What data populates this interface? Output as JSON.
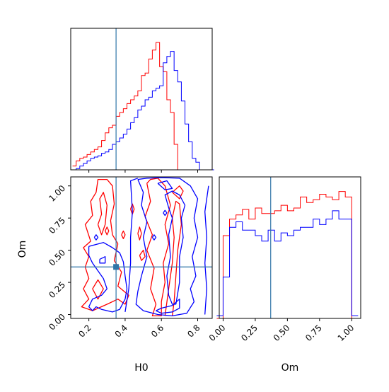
{
  "chart_data": {
    "type": "corner",
    "parameters": [
      "H0",
      "Om"
    ],
    "xlabel": "H0",
    "ylabel": "Om",
    "truth": {
      "H0": 0.35,
      "Om": 0.37
    },
    "colors": {
      "series_a": "#ff0000",
      "series_b": "#0000ff",
      "truth": "#2f74a8"
    },
    "h0_ticks": [
      "0.2",
      "0.4",
      "0.6",
      "0.8"
    ],
    "om_ticks": [
      "0.00",
      "0.25",
      "0.50",
      "0.75",
      "1.00"
    ],
    "h0_range": [
      0.1,
      0.88
    ],
    "om_range": [
      -0.03,
      1.07
    ],
    "histogram_h0": {
      "bin_edges": [
        0.11,
        0.13,
        0.15,
        0.17,
        0.19,
        0.21,
        0.23,
        0.25,
        0.27,
        0.29,
        0.31,
        0.33,
        0.35,
        0.37,
        0.39,
        0.41,
        0.43,
        0.45,
        0.47,
        0.49,
        0.51,
        0.53,
        0.55,
        0.57,
        0.59,
        0.61,
        0.63,
        0.65,
        0.67,
        0.69,
        0.71,
        0.73,
        0.75,
        0.77,
        0.79,
        0.81,
        0.83,
        0.85,
        0.87,
        0.89
      ],
      "series": [
        {
          "color": "red",
          "values": [
            0.03,
            0.07,
            0.09,
            0.1,
            0.12,
            0.14,
            0.16,
            0.18,
            0.23,
            0.29,
            0.33,
            0.35,
            0.42,
            0.45,
            0.48,
            0.52,
            0.55,
            0.58,
            0.62,
            0.74,
            0.76,
            0.87,
            0.94,
            1.0,
            0.81,
            0.77,
            0.55,
            0.45,
            0.2,
            0.0,
            0.0,
            0.0,
            0.0,
            0.0,
            0.0,
            0.0,
            0.0,
            0.0,
            0.0
          ]
        },
        {
          "color": "blue",
          "values": [
            0.0,
            0.01,
            0.03,
            0.05,
            0.07,
            0.09,
            0.1,
            0.11,
            0.13,
            0.14,
            0.16,
            0.2,
            0.22,
            0.25,
            0.28,
            0.32,
            0.37,
            0.41,
            0.47,
            0.5,
            0.55,
            0.57,
            0.62,
            0.64,
            0.66,
            0.84,
            0.89,
            0.93,
            0.78,
            0.69,
            0.54,
            0.36,
            0.22,
            0.09,
            0.06,
            0.0,
            0.0,
            0.0,
            0.0
          ]
        }
      ]
    },
    "histogram_om": {
      "bin_edges": [
        -0.05,
        0.0,
        0.05,
        0.1,
        0.15,
        0.2,
        0.25,
        0.3,
        0.35,
        0.4,
        0.45,
        0.5,
        0.55,
        0.6,
        0.65,
        0.7,
        0.75,
        0.8,
        0.85,
        0.9,
        0.95,
        1.0,
        1.05
      ],
      "series": [
        {
          "color": "red",
          "values": [
            0.0,
            0.6,
            0.72,
            0.75,
            0.79,
            0.72,
            0.8,
            0.76,
            0.76,
            0.78,
            0.82,
            0.78,
            0.8,
            0.88,
            0.84,
            0.86,
            0.9,
            0.88,
            0.86,
            0.92,
            0.88,
            0.0
          ]
        },
        {
          "color": "blue",
          "values": [
            0.02,
            0.3,
            0.66,
            0.7,
            0.64,
            0.64,
            0.6,
            0.56,
            0.64,
            0.56,
            0.62,
            0.6,
            0.64,
            0.66,
            0.66,
            0.72,
            0.68,
            0.72,
            0.78,
            0.72,
            0.72,
            0.02
          ]
        }
      ]
    },
    "contours": [
      {
        "color": "red",
        "points": [
          [
            0.36,
            0.55
          ],
          [
            0.33,
            0.62
          ],
          [
            0.32,
            0.73
          ],
          [
            0.34,
            0.86
          ],
          [
            0.33,
            1.0
          ],
          [
            0.3,
            1.05
          ],
          [
            0.25,
            1.05
          ],
          [
            0.24,
            0.95
          ],
          [
            0.21,
            0.88
          ],
          [
            0.22,
            0.77
          ],
          [
            0.18,
            0.7
          ],
          [
            0.21,
            0.57
          ],
          [
            0.17,
            0.52
          ],
          [
            0.2,
            0.45
          ],
          [
            0.18,
            0.37
          ],
          [
            0.2,
            0.28
          ],
          [
            0.17,
            0.2
          ],
          [
            0.2,
            0.12
          ],
          [
            0.16,
            0.06
          ],
          [
            0.22,
            0.03
          ],
          [
            0.3,
            0.08
          ],
          [
            0.36,
            0.12
          ],
          [
            0.4,
            0.08
          ],
          [
            0.42,
            0.15
          ],
          [
            0.36,
            0.22
          ],
          [
            0.38,
            0.33
          ],
          [
            0.34,
            0.42
          ],
          [
            0.36,
            0.55
          ]
        ]
      },
      {
        "color": "red",
        "points": [
          [
            0.25,
            0.7
          ],
          [
            0.27,
            0.78
          ],
          [
            0.26,
            0.9
          ],
          [
            0.28,
            0.95
          ],
          [
            0.3,
            0.85
          ],
          [
            0.29,
            0.7
          ],
          [
            0.27,
            0.62
          ],
          [
            0.25,
            0.7
          ]
        ]
      },
      {
        "color": "red",
        "points": [
          [
            0.22,
            0.2
          ],
          [
            0.25,
            0.27
          ],
          [
            0.28,
            0.2
          ],
          [
            0.25,
            0.12
          ],
          [
            0.22,
            0.2
          ]
        ]
      },
      {
        "color": "red",
        "points": [
          [
            0.52,
            1.02
          ],
          [
            0.54,
            0.88
          ],
          [
            0.51,
            0.76
          ],
          [
            0.55,
            0.62
          ],
          [
            0.52,
            0.5
          ],
          [
            0.56,
            0.36
          ],
          [
            0.54,
            0.2
          ],
          [
            0.57,
            0.08
          ],
          [
            0.55,
            -0.01
          ],
          [
            0.6,
            -0.01
          ],
          [
            0.6,
            0.1
          ],
          [
            0.62,
            0.25
          ],
          [
            0.61,
            0.4
          ],
          [
            0.64,
            0.55
          ],
          [
            0.62,
            0.7
          ],
          [
            0.65,
            0.85
          ],
          [
            0.62,
            1.0
          ],
          [
            0.58,
            1.06
          ],
          [
            0.54,
            1.05
          ],
          [
            0.52,
            1.02
          ]
        ]
      },
      {
        "color": "red",
        "points": [
          [
            0.62,
            -0.01
          ],
          [
            0.64,
            0.2
          ],
          [
            0.66,
            0.4
          ],
          [
            0.67,
            0.6
          ],
          [
            0.66,
            0.75
          ],
          [
            0.68,
            0.88
          ],
          [
            0.7,
            0.86
          ],
          [
            0.71,
            0.7
          ],
          [
            0.69,
            0.5
          ],
          [
            0.68,
            0.3
          ],
          [
            0.67,
            0.1
          ],
          [
            0.66,
            -0.01
          ]
        ]
      },
      {
        "color": "red",
        "points": [
          [
            0.66,
            0.95
          ],
          [
            0.7,
            1.0
          ],
          [
            0.72,
            0.96
          ],
          [
            0.7,
            0.9
          ],
          [
            0.66,
            0.95
          ]
        ]
      },
      {
        "color": "red",
        "points": [
          [
            0.43,
            0.82
          ],
          [
            0.44,
            0.86
          ],
          [
            0.45,
            0.82
          ],
          [
            0.44,
            0.78
          ],
          [
            0.43,
            0.82
          ]
        ]
      },
      {
        "color": "red",
        "points": [
          [
            0.47,
            0.63
          ],
          [
            0.48,
            0.68
          ],
          [
            0.49,
            0.63
          ],
          [
            0.48,
            0.58
          ],
          [
            0.47,
            0.63
          ]
        ]
      },
      {
        "color": "red",
        "points": [
          [
            0.29,
            0.65
          ],
          [
            0.3,
            0.68
          ],
          [
            0.31,
            0.65
          ],
          [
            0.3,
            0.62
          ],
          [
            0.29,
            0.65
          ]
        ]
      },
      {
        "color": "red",
        "points": [
          [
            0.48,
            0.46
          ],
          [
            0.5,
            0.5
          ],
          [
            0.51,
            0.45
          ],
          [
            0.49,
            0.42
          ],
          [
            0.48,
            0.46
          ]
        ]
      },
      {
        "color": "red",
        "points": [
          [
            0.38,
            0.62
          ],
          [
            0.39,
            0.65
          ],
          [
            0.4,
            0.62
          ],
          [
            0.39,
            0.59
          ],
          [
            0.38,
            0.62
          ]
        ]
      },
      {
        "color": "blue",
        "points": [
          [
            0.2,
            0.53
          ],
          [
            0.28,
            0.56
          ],
          [
            0.33,
            0.52
          ],
          [
            0.37,
            0.48
          ],
          [
            0.39,
            0.41
          ],
          [
            0.4,
            0.3
          ],
          [
            0.41,
            0.2
          ],
          [
            0.4,
            0.12
          ],
          [
            0.37,
            0.04
          ],
          [
            0.33,
            0.02
          ],
          [
            0.27,
            0.04
          ],
          [
            0.24,
            0.06
          ],
          [
            0.22,
            0.03
          ],
          [
            0.2,
            0.06
          ],
          [
            0.22,
            0.12
          ],
          [
            0.27,
            0.15
          ],
          [
            0.3,
            0.2
          ],
          [
            0.28,
            0.28
          ],
          [
            0.25,
            0.34
          ],
          [
            0.22,
            0.4
          ],
          [
            0.2,
            0.46
          ],
          [
            0.2,
            0.53
          ]
        ]
      },
      {
        "color": "blue",
        "points": [
          [
            0.47,
            1.05
          ],
          [
            0.5,
            0.95
          ],
          [
            0.49,
            0.85
          ],
          [
            0.52,
            0.72
          ],
          [
            0.5,
            0.6
          ],
          [
            0.52,
            0.45
          ],
          [
            0.49,
            0.3
          ],
          [
            0.47,
            0.18
          ],
          [
            0.46,
            0.08
          ],
          [
            0.5,
            0.03
          ],
          [
            0.58,
            0.0
          ],
          [
            0.66,
            -0.01
          ],
          [
            0.74,
            0.01
          ],
          [
            0.78,
            0.1
          ],
          [
            0.76,
            0.2
          ],
          [
            0.79,
            0.3
          ],
          [
            0.77,
            0.45
          ],
          [
            0.8,
            0.6
          ],
          [
            0.78,
            0.75
          ],
          [
            0.8,
            0.9
          ],
          [
            0.76,
            1.0
          ],
          [
            0.7,
            1.06
          ],
          [
            0.6,
            1.07
          ],
          [
            0.52,
            1.06
          ],
          [
            0.47,
            1.05
          ]
        ]
      },
      {
        "color": "blue",
        "points": [
          [
            0.68,
            0.08
          ],
          [
            0.7,
            0.25
          ],
          [
            0.7,
            0.45
          ],
          [
            0.72,
            0.6
          ],
          [
            0.71,
            0.75
          ],
          [
            0.73,
            0.85
          ],
          [
            0.7,
            0.93
          ],
          [
            0.66,
            0.96
          ],
          [
            0.62,
            0.93
          ],
          [
            0.64,
            0.83
          ],
          [
            0.66,
            0.75
          ],
          [
            0.64,
            0.62
          ],
          [
            0.65,
            0.45
          ],
          [
            0.63,
            0.3
          ],
          [
            0.64,
            0.15
          ],
          [
            0.66,
            0.08
          ],
          [
            0.68,
            0.08
          ]
        ]
      },
      {
        "color": "blue",
        "points": [
          [
            0.4,
            0.02
          ],
          [
            0.42,
            0.2
          ],
          [
            0.43,
            0.4
          ],
          [
            0.43,
            0.6
          ],
          [
            0.44,
            0.8
          ],
          [
            0.43,
            1.04
          ],
          [
            0.47,
            1.06
          ]
        ]
      },
      {
        "color": "blue",
        "points": [
          [
            0.57,
            0.03
          ],
          [
            0.6,
            0.01
          ],
          [
            0.66,
            0.02
          ],
          [
            0.7,
            0.05
          ],
          [
            0.7,
            0.12
          ],
          [
            0.66,
            0.07
          ],
          [
            0.6,
            0.05
          ],
          [
            0.57,
            0.03
          ]
        ]
      },
      {
        "color": "blue",
        "points": [
          [
            0.84,
            0.0
          ],
          [
            0.85,
            0.2
          ],
          [
            0.84,
            0.4
          ],
          [
            0.85,
            0.6
          ],
          [
            0.84,
            0.8
          ],
          [
            0.86,
            1.0
          ]
        ]
      },
      {
        "color": "blue",
        "points": [
          [
            0.58,
            1.02
          ],
          [
            0.62,
            0.97
          ],
          [
            0.66,
            0.98
          ],
          [
            0.63,
            1.04
          ],
          [
            0.58,
            1.02
          ]
        ]
      },
      {
        "color": "blue",
        "points": [
          [
            0.23,
            0.6
          ],
          [
            0.24,
            0.62
          ],
          [
            0.25,
            0.6
          ],
          [
            0.24,
            0.58
          ],
          [
            0.23,
            0.6
          ]
        ]
      },
      {
        "color": "blue",
        "points": [
          [
            0.55,
            0.6
          ],
          [
            0.56,
            0.62
          ],
          [
            0.57,
            0.6
          ],
          [
            0.56,
            0.58
          ],
          [
            0.55,
            0.6
          ]
        ]
      },
      {
        "color": "blue",
        "points": [
          [
            0.26,
            0.43
          ],
          [
            0.29,
            0.45
          ],
          [
            0.29,
            0.4
          ],
          [
            0.26,
            0.4
          ],
          [
            0.26,
            0.43
          ]
        ]
      },
      {
        "color": "blue",
        "points": [
          [
            0.61,
            0.79
          ],
          [
            0.62,
            0.81
          ],
          [
            0.63,
            0.79
          ],
          [
            0.62,
            0.77
          ],
          [
            0.61,
            0.79
          ]
        ]
      }
    ]
  }
}
